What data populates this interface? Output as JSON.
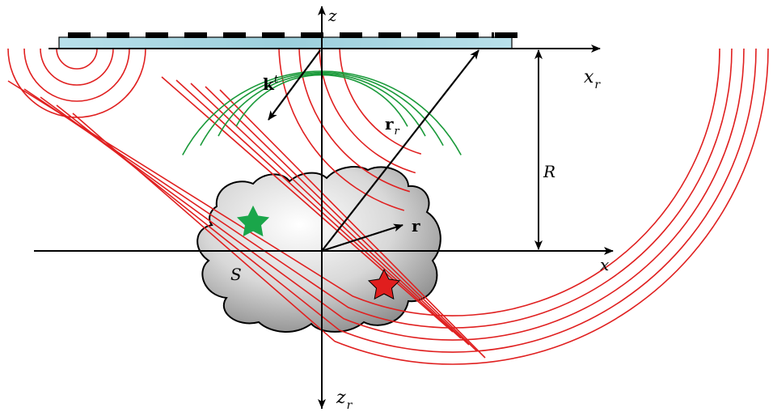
{
  "labels": {
    "z_axis": "z",
    "xr_axis_main": "x",
    "xr_axis_sub": "r",
    "k_main": "k",
    "k_sup": "t",
    "rr_main": "r",
    "rr_sub": "r",
    "R_label": "R",
    "r_label": "r",
    "x_axis": "x",
    "S_label": "S",
    "zr_axis_main": "z",
    "zr_axis_sub": "r"
  },
  "colors": {
    "axis": "#000000",
    "red_waves": "#e02020",
    "green_waves": "#1a9a3a",
    "green_star": "#1aa64a",
    "red_star": "#e01e1e",
    "array_plate": "#a8d8e4",
    "array_elements": "#000000"
  }
}
